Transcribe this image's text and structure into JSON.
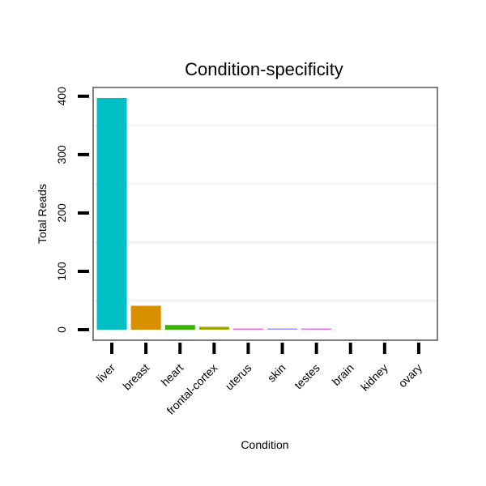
{
  "chart_data": {
    "type": "bar",
    "title": "Condition-specificity",
    "xlabel": "Condition",
    "ylabel": "Total Reads",
    "categories": [
      "liver",
      "breast",
      "heart",
      "frontal-cortex",
      "uterus",
      "skin",
      "testes",
      "brain",
      "kidney",
      "ovary"
    ],
    "values": [
      397,
      41,
      8,
      5,
      2,
      1,
      1,
      0,
      0,
      0
    ],
    "colors": [
      "#00bfc4",
      "#d89000",
      "#39b600",
      "#a3a500",
      "#f564e3",
      "#9590ff",
      "#e76bf3",
      "#00b0f6",
      "#00bf7d",
      "#ff62bc"
    ],
    "yticks": [
      0,
      100,
      200,
      300,
      400
    ],
    "ylim": [
      -18,
      415
    ],
    "grid": true,
    "legend": "none"
  }
}
